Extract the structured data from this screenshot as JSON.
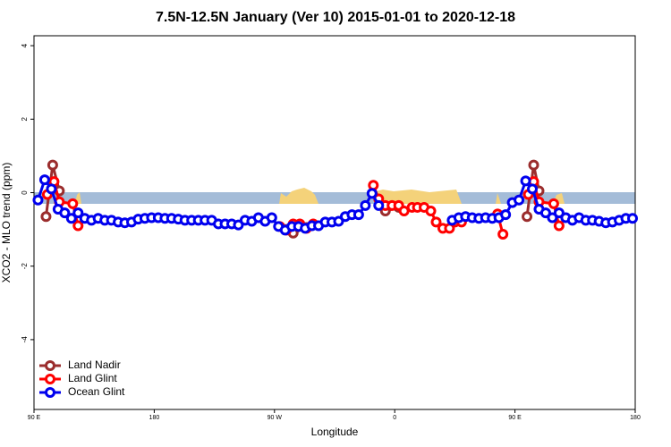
{
  "chart_data": {
    "type": "line",
    "title": "7.5N-12.5N January (Ver 10)   2015-01-01 to 2020-12-18",
    "x_label": "Longitude",
    "y_label": "XCO2 - MLO trend (ppm)",
    "xlim": [
      90,
      540
    ],
    "xticks": [
      {
        "value": 90,
        "label": "90 E"
      },
      {
        "value": 180,
        "label": "180"
      },
      {
        "value": 270,
        "label": "90 W"
      },
      {
        "value": 360,
        "label": "0"
      },
      {
        "value": 450,
        "label": "90 E"
      },
      {
        "value": 540,
        "label": "180"
      }
    ],
    "ylim": [
      -5.9,
      4.27
    ],
    "yticks": [
      -4,
      -2,
      0,
      2,
      4
    ],
    "legend": "bottom-left",
    "series": [
      {
        "name": "Land Nadir",
        "color": "#9b2d2d",
        "x": [
          99,
          104,
          109,
          200,
          279,
          284,
          294,
          320,
          353,
          363,
          420,
          437,
          450,
          459,
          464,
          468
        ],
        "values": [
          -0.65,
          0.75,
          0.05,
          null,
          -1.0,
          -1.1,
          -0.95,
          null,
          -0.5,
          -0.4,
          null,
          -0.6,
          null,
          -0.65,
          0.75,
          0.05
        ]
      },
      {
        "name": "Land Glint",
        "color": "#ff0000",
        "x": [
          100,
          105,
          109,
          119,
          123,
          200,
          274,
          279,
          284,
          289,
          294,
          299,
          320,
          344,
          348,
          353,
          358,
          363,
          367,
          373,
          377,
          382,
          387,
          391,
          396,
          401,
          405,
          410,
          420,
          437,
          441,
          450,
          460,
          464,
          468,
          479,
          483
        ],
        "values": [
          -0.05,
          0.3,
          -0.25,
          -0.3,
          -0.9,
          null,
          -0.92,
          -1.02,
          -0.85,
          -0.85,
          -0.97,
          -0.85,
          null,
          0.2,
          -0.17,
          -0.35,
          -0.35,
          -0.35,
          -0.5,
          -0.4,
          -0.4,
          -0.4,
          -0.5,
          -0.8,
          -0.97,
          -0.97,
          -0.8,
          -0.8,
          null,
          -0.58,
          -1.13,
          null,
          -0.05,
          0.3,
          -0.25,
          -0.3,
          -0.9
        ]
      },
      {
        "name": "Ocean Glint",
        "color": "#0000ee",
        "x": [
          93,
          98,
          103,
          108,
          113,
          118,
          123,
          128,
          133,
          138,
          143,
          148,
          153,
          158,
          163,
          168,
          173,
          178,
          183,
          188,
          193,
          198,
          203,
          208,
          213,
          218,
          223,
          228,
          233,
          238,
          243,
          248,
          253,
          258,
          263,
          268,
          273,
          278,
          283,
          288,
          293,
          298,
          303,
          308,
          313,
          318,
          323,
          328,
          333,
          338,
          343,
          348,
          375,
          403,
          408,
          413,
          418,
          423,
          428,
          433,
          438,
          443,
          448,
          453,
          458,
          463,
          468,
          473,
          478,
          483,
          488,
          493,
          498,
          503,
          508,
          513,
          518,
          523,
          528,
          533,
          538
        ],
        "values": [
          -0.2,
          0.35,
          0.1,
          -0.45,
          -0.55,
          -0.7,
          -0.55,
          -0.7,
          -0.75,
          -0.7,
          -0.75,
          -0.75,
          -0.8,
          -0.82,
          -0.8,
          -0.72,
          -0.7,
          -0.68,
          -0.68,
          -0.7,
          -0.7,
          -0.72,
          -0.75,
          -0.75,
          -0.75,
          -0.75,
          -0.75,
          -0.85,
          -0.85,
          -0.85,
          -0.88,
          -0.75,
          -0.78,
          -0.68,
          -0.78,
          -0.68,
          -0.92,
          -1.02,
          -0.92,
          -0.92,
          -0.97,
          -0.9,
          -0.9,
          -0.8,
          -0.8,
          -0.78,
          -0.65,
          -0.6,
          -0.6,
          -0.35,
          -0.02,
          -0.35,
          null,
          -0.75,
          -0.68,
          -0.65,
          -0.68,
          -0.7,
          -0.68,
          -0.7,
          -0.68,
          -0.6,
          -0.27,
          -0.2,
          0.32,
          0.1,
          -0.45,
          -0.55,
          -0.68,
          -0.55,
          -0.68,
          -0.75,
          -0.68,
          -0.75,
          -0.75,
          -0.78,
          -0.82,
          -0.8,
          -0.75,
          -0.7,
          -0.7
        ]
      }
    ]
  }
}
